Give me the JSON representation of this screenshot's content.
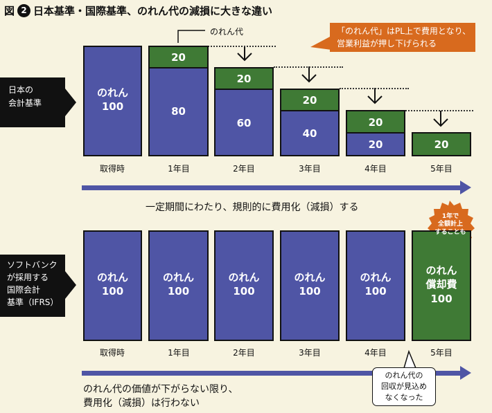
{
  "title": {
    "fig_label": "図",
    "number": "2",
    "text": "日本基準・国際基準、のれん代の減損に大きな違い"
  },
  "top": {
    "side_label": "日本の\n会計基準",
    "noren_callout": "のれん代",
    "orange_callout": "「のれん代」はPL上で費用となり、\n営業利益が押し下げられる",
    "years": [
      "取得時",
      "1年目",
      "2年目",
      "3年目",
      "4年目",
      "5年目"
    ],
    "initial_block": "のれん\n100",
    "green_values": [
      "20",
      "20",
      "20",
      "20",
      "20"
    ],
    "blue_values": [
      "80",
      "60",
      "40",
      "20"
    ],
    "arrow_caption": "一定期間にわたり、規則的に費用化（減損）する"
  },
  "bottom": {
    "side_label": "ソフトバンク\nが採用する\n国際会計\n基準（IFRS）",
    "years": [
      "取得時",
      "1年目",
      "2年目",
      "3年目",
      "4年目",
      "5年目"
    ],
    "blocks": [
      "のれん\n100",
      "のれん\n100",
      "のれん\n100",
      "のれん\n100",
      "のれん\n100"
    ],
    "final_block": "のれん\n償却費\n100",
    "badge": "1年で\n全額計上\nすることも",
    "white_callout": "のれん代の\n回収が見込め\nなくなった",
    "caption": "のれん代の価値が下がらない限り、\n費用化（減損）は行わない"
  },
  "colors": {
    "blue": "#4f55a5",
    "green": "#3f7a35",
    "orange": "#d86a1e",
    "background": "#f7f3e0"
  }
}
